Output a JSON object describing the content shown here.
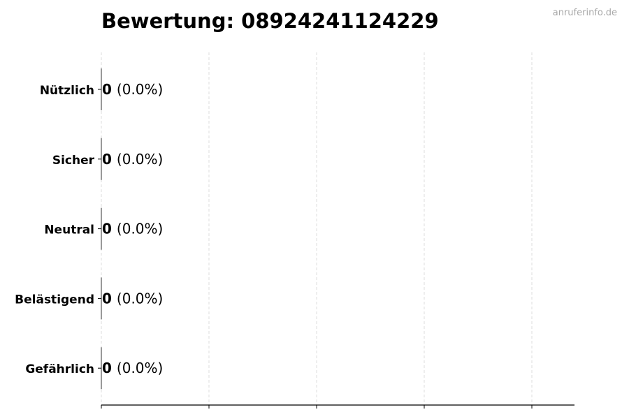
{
  "watermark": "anruferinfo.de",
  "chart_data": {
    "type": "bar",
    "orientation": "horizontal",
    "title": "Bewertung: 08924241124229",
    "xlabel": "",
    "ylabel": "",
    "categories": [
      "Nützlich",
      "Sicher",
      "Neutral",
      "Belästigend",
      "Gefährlich"
    ],
    "values": [
      0,
      0,
      0,
      0,
      0
    ],
    "percentages": [
      "0.0%",
      "0.0%",
      "0.0%",
      "0.0%",
      "0.0%"
    ],
    "data_labels": [
      {
        "count": "0",
        "percent": "(0.0%)"
      },
      {
        "count": "0",
        "percent": "(0.0%)"
      },
      {
        "count": "0",
        "percent": "(0.0%)"
      },
      {
        "count": "0",
        "percent": "(0.0%)"
      },
      {
        "count": "0",
        "percent": "(0.0%)"
      }
    ],
    "x_tick_labels": [],
    "grid": "vertical dashed",
    "legend": "none",
    "colors": {
      "grid": "#dddddd",
      "axis": "#000000",
      "text": "#000000",
      "watermark": "#a8a8a8"
    }
  }
}
